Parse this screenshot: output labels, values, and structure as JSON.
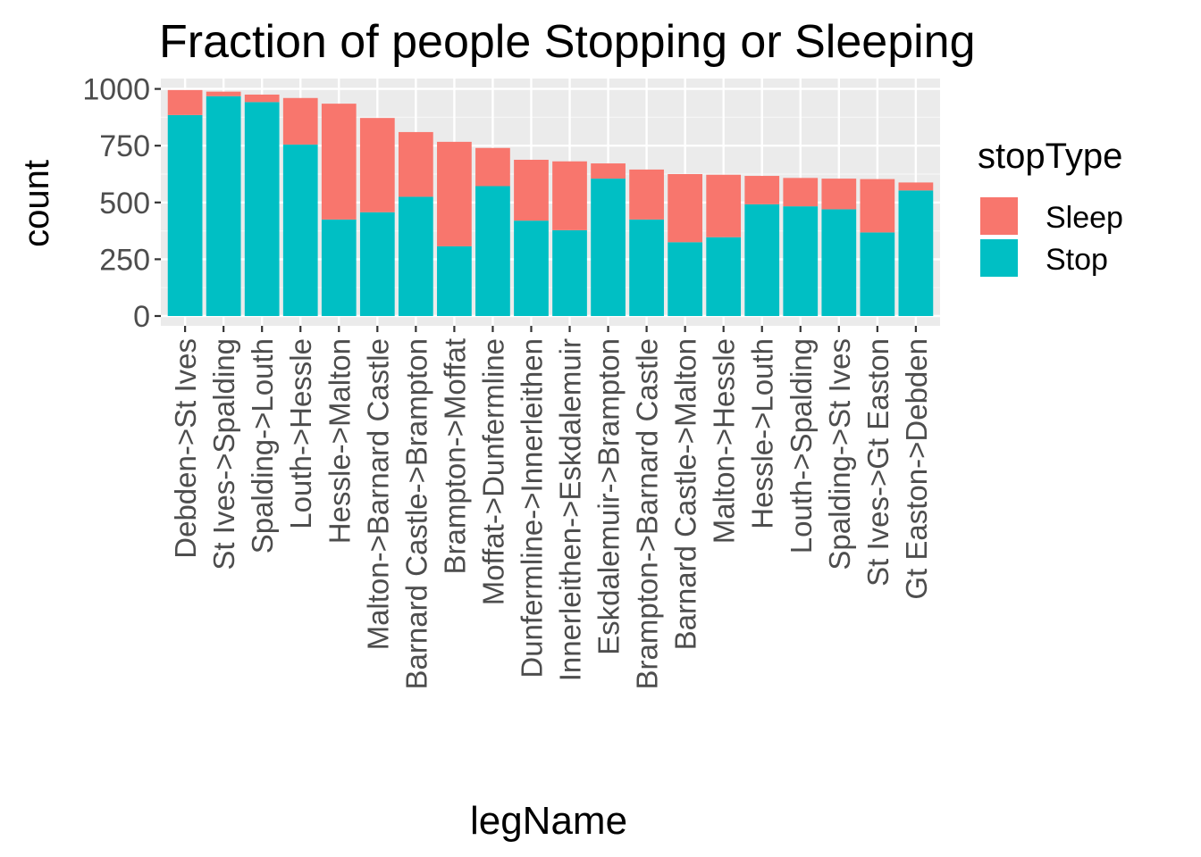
{
  "chart_data": {
    "type": "bar",
    "stacked": true,
    "title": "Fraction of people Stopping or Sleeping",
    "xlabel": "legName",
    "ylabel": "count",
    "ylim": [
      0,
      1050
    ],
    "yticks": [
      0,
      250,
      500,
      750,
      1000
    ],
    "grid": true,
    "legend": {
      "title": "stopType",
      "position": "right",
      "items": [
        {
          "name": "Sleep",
          "color": "#F8766D"
        },
        {
          "name": "Stop",
          "color": "#00BFC4"
        }
      ]
    },
    "categories": [
      "Debden->St Ives",
      "St Ives->Spalding",
      "Spalding->Louth",
      "Louth->Hessle",
      "Hessle->Malton",
      "Malton->Barnard Castle",
      "Barnard Castle->Brampton",
      "Brampton->Moffat",
      "Moffat->Dunfermline",
      "Dunfermline->Innerleithen",
      "Innerleithen->Eskdalemuir",
      "Eskdalemuir->Brampton",
      "Brampton->Barnard Castle",
      "Barnard Castle->Malton",
      "Malton->Hessle",
      "Hessle->Louth",
      "Louth->Spalding",
      "Spalding->St Ives",
      "St Ives->Gt Easton",
      "Gt Easton->Debden"
    ],
    "series": [
      {
        "name": "Stop",
        "color": "#00BFC4",
        "values": [
          885,
          968,
          942,
          755,
          425,
          457,
          525,
          307,
          572,
          420,
          378,
          605,
          425,
          325,
          347,
          492,
          483,
          470,
          368,
          553
        ]
      },
      {
        "name": "Sleep",
        "color": "#F8766D",
        "values": [
          110,
          20,
          33,
          205,
          510,
          415,
          285,
          460,
          168,
          268,
          303,
          67,
          220,
          300,
          275,
          125,
          125,
          135,
          235,
          35
        ]
      }
    ]
  }
}
